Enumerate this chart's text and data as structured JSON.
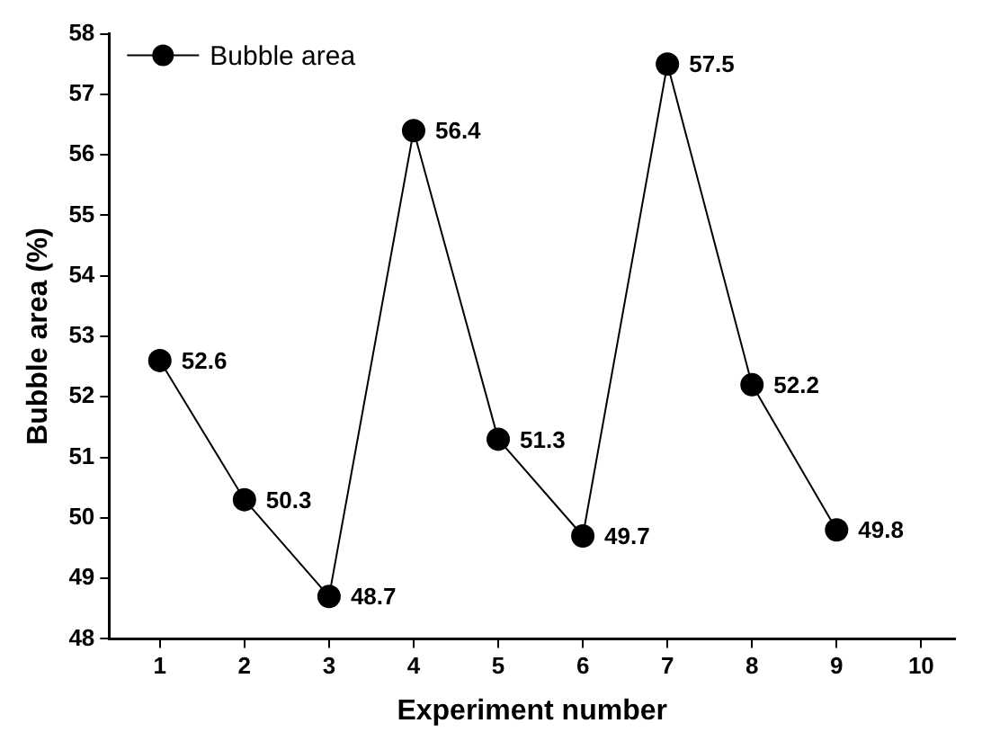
{
  "chart_data": {
    "type": "line",
    "xlabel": "Experiment number",
    "ylabel": "Bubble area (%)",
    "x": [
      1,
      2,
      3,
      4,
      5,
      6,
      7,
      8,
      9
    ],
    "series": [
      {
        "name": "Bubble area",
        "color": "#000000",
        "values": [
          52.6,
          50.3,
          48.7,
          56.4,
          51.3,
          49.7,
          57.5,
          52.2,
          49.8
        ]
      }
    ],
    "xlim": [
      0.4,
      10.4
    ],
    "xticks": [
      1,
      2,
      3,
      4,
      5,
      6,
      7,
      8,
      9,
      10
    ],
    "ylim": [
      48,
      58
    ],
    "yticks": [
      48,
      49,
      50,
      51,
      52,
      53,
      54,
      55,
      56,
      57,
      58
    ],
    "grid": false,
    "legend": "top left",
    "marker": "circle",
    "line_style": "solid",
    "data_labels": true
  }
}
